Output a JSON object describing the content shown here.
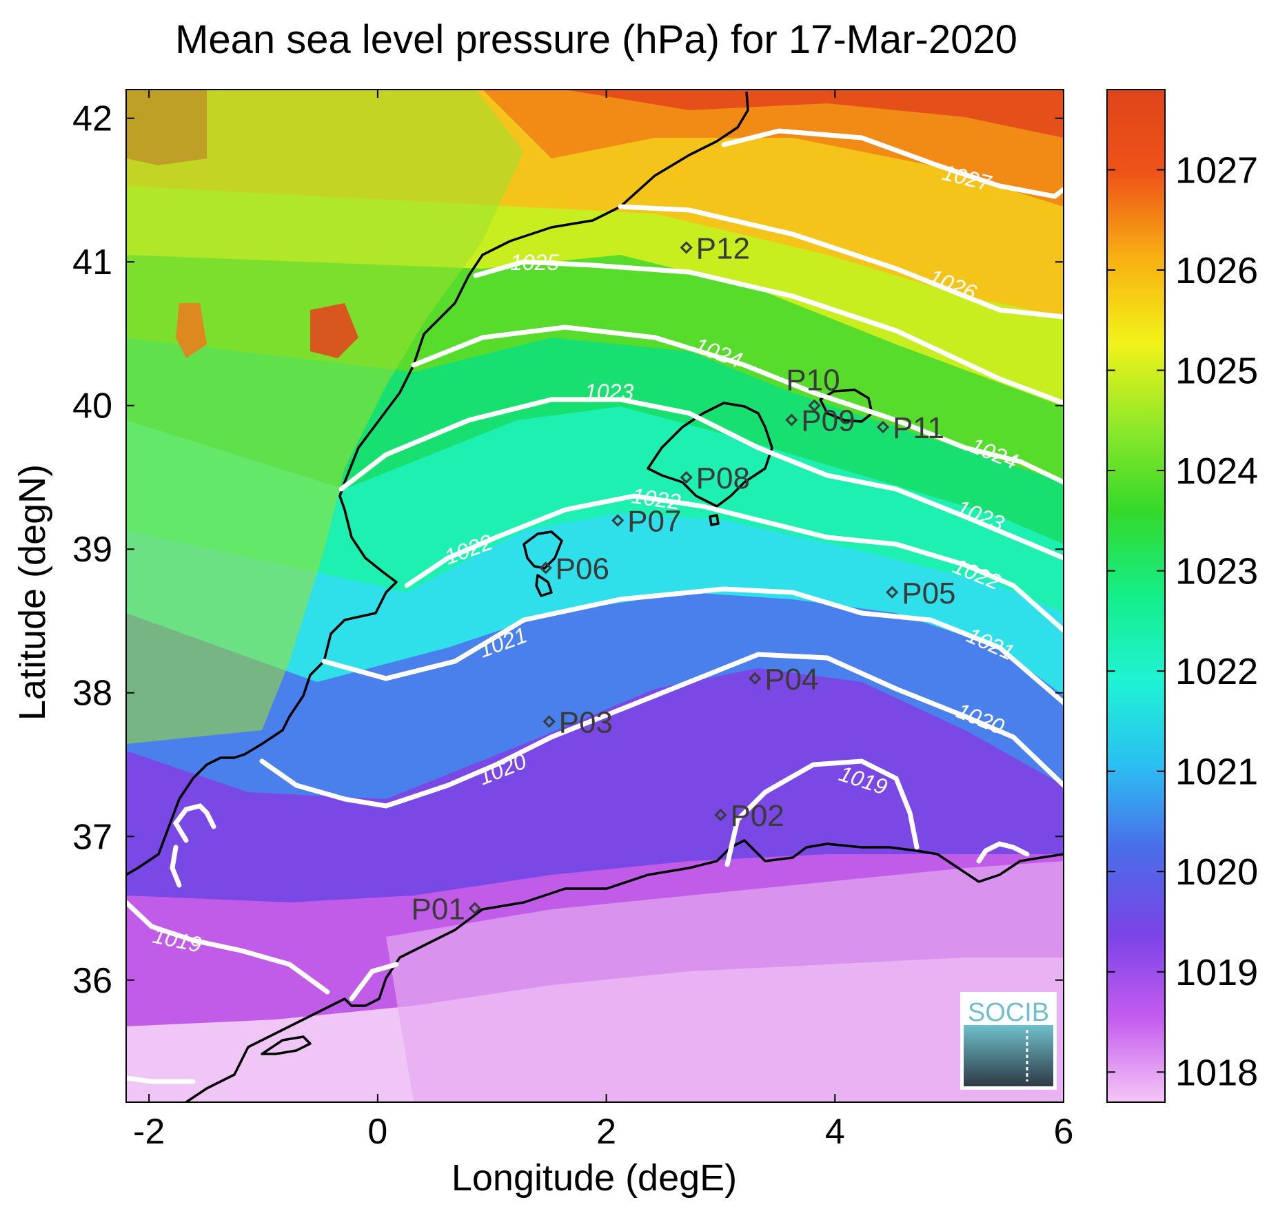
{
  "chart_data": {
    "type": "heatmap",
    "title": "Mean sea level pressure (hPa) for 17-Mar-2020",
    "xlabel": "Longitude (degE)",
    "ylabel": "Latitude (degN)",
    "xlim": [
      -2.2,
      6.0
    ],
    "ylim": [
      35.15,
      42.2
    ],
    "xticks": [
      "-2",
      "0",
      "2",
      "4",
      "6"
    ],
    "yticks": [
      "36",
      "37",
      "38",
      "39",
      "40",
      "41",
      "42"
    ],
    "colorbar": {
      "range": [
        1017.7,
        1027.8
      ],
      "ticks": [
        "1018",
        "1019",
        "1020",
        "1021",
        "1022",
        "1023",
        "1024",
        "1025",
        "1026",
        "1027"
      ],
      "colors": [
        "#f5c6f6",
        "#c45cf0",
        "#7a44e6",
        "#4a6de8",
        "#2bbff2",
        "#1ef3d4",
        "#14ee8a",
        "#34d92a",
        "#8fe82a",
        "#f2f21a",
        "#f8b012",
        "#ee5418",
        "#e0441a"
      ]
    },
    "contour_labels": [
      "1019",
      "1019",
      "1020",
      "1020",
      "1021",
      "1021",
      "1022",
      "1022",
      "1022",
      "1023",
      "1023",
      "1024",
      "1024",
      "1025",
      "1026",
      "1027"
    ],
    "stations": [
      {
        "name": "P01",
        "lon": 0.85,
        "lat": 36.5
      },
      {
        "name": "P02",
        "lon": 3.0,
        "lat": 37.15
      },
      {
        "name": "P03",
        "lon": 1.5,
        "lat": 37.8
      },
      {
        "name": "P04",
        "lon": 3.3,
        "lat": 38.1
      },
      {
        "name": "P05",
        "lon": 4.5,
        "lat": 38.7
      },
      {
        "name": "P06",
        "lon": 1.47,
        "lat": 38.87
      },
      {
        "name": "P07",
        "lon": 2.1,
        "lat": 39.2
      },
      {
        "name": "P08",
        "lon": 2.7,
        "lat": 39.5
      },
      {
        "name": "P09",
        "lon": 3.62,
        "lat": 39.9
      },
      {
        "name": "P10",
        "lon": 3.82,
        "lat": 40.0
      },
      {
        "name": "P11",
        "lon": 4.42,
        "lat": 39.85
      },
      {
        "name": "P12",
        "lon": 2.7,
        "lat": 41.1
      }
    ]
  },
  "logo": {
    "text": "SOCIB"
  }
}
